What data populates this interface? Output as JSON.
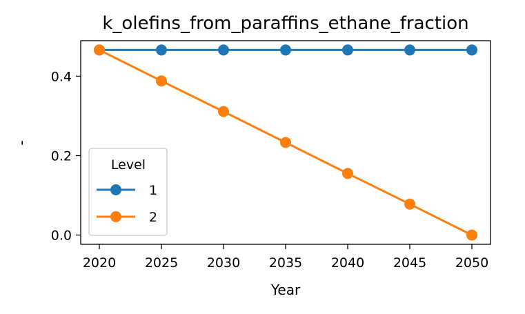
{
  "chart_data": {
    "type": "line",
    "title": "k_olefins_from_paraffins_ethane_fraction",
    "xlabel": "Year",
    "ylabel": "-",
    "x": [
      2020,
      2025,
      2030,
      2035,
      2040,
      2045,
      2050
    ],
    "xlim": [
      2018.5,
      2051.5
    ],
    "ylim": [
      -0.0233,
      0.4893
    ],
    "xticks": [
      "2020",
      "2025",
      "2030",
      "2035",
      "2040",
      "2045",
      "2050"
    ],
    "yticks": [
      {
        "value": 0.0,
        "label": "0.0"
      },
      {
        "value": 0.2,
        "label": "0.2"
      },
      {
        "value": 0.4,
        "label": "0.4"
      }
    ],
    "grid": false,
    "legend": {
      "title": "Level",
      "placement": "lower-left"
    },
    "series": [
      {
        "name": "1",
        "color": "#1f77b4",
        "values": [
          0.466,
          0.466,
          0.466,
          0.466,
          0.466,
          0.466,
          0.466
        ]
      },
      {
        "name": "2",
        "color": "#ff7f0e",
        "values": [
          0.466,
          0.388,
          0.311,
          0.233,
          0.155,
          0.078,
          0.0
        ]
      }
    ]
  }
}
